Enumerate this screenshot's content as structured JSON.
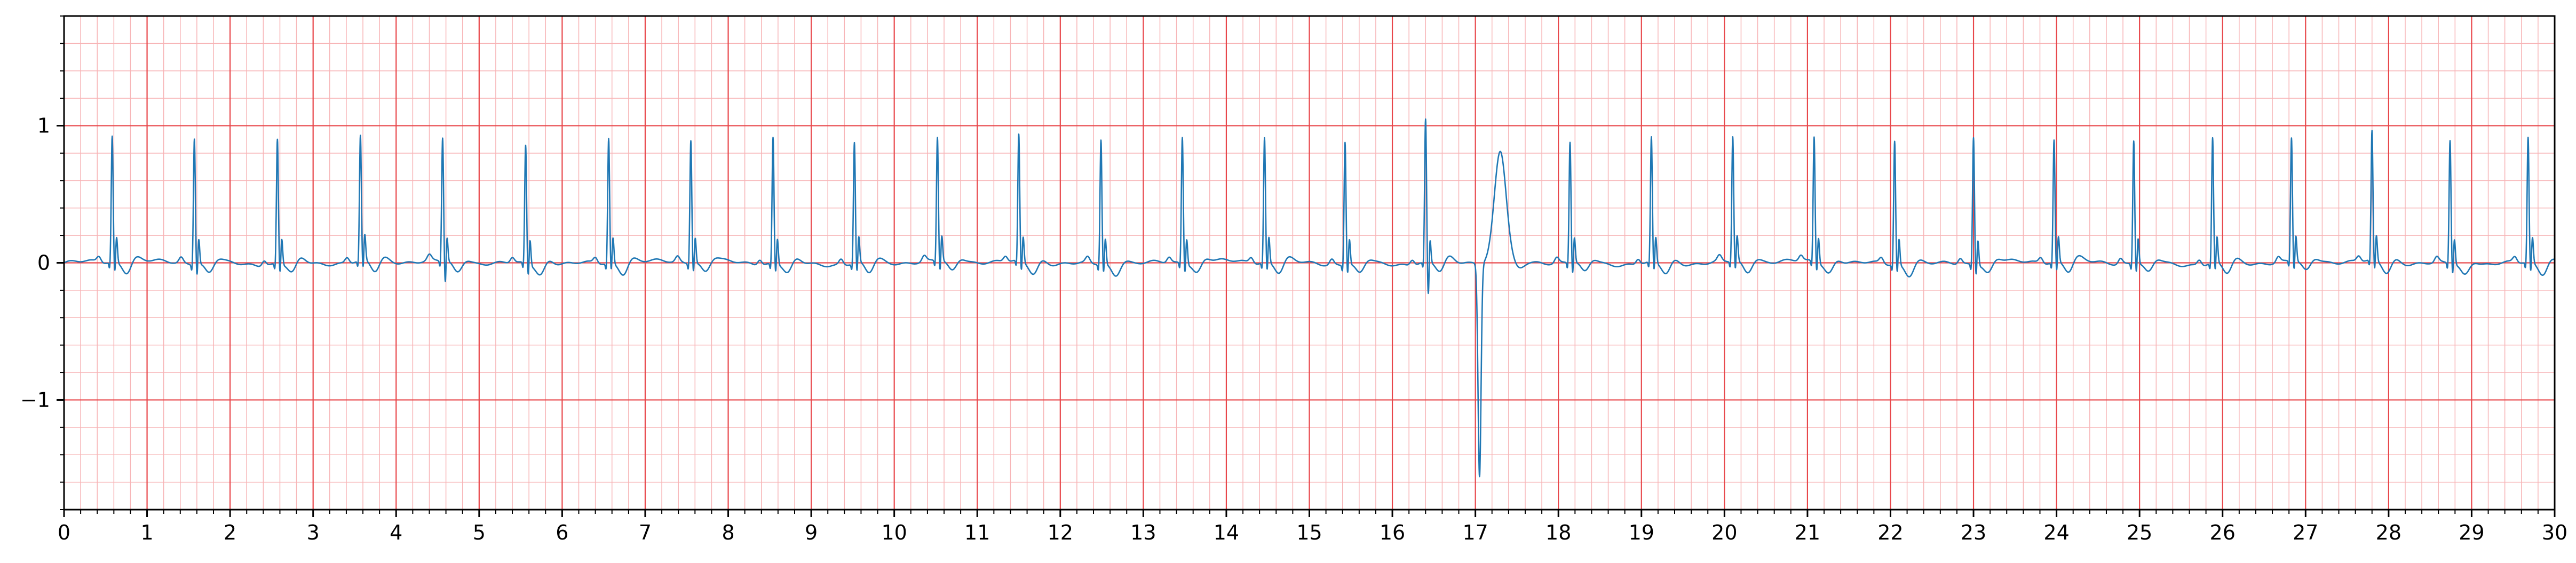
{
  "chart_data": {
    "type": "line",
    "title": "",
    "xlabel": "",
    "ylabel": "",
    "xlim": [
      0,
      30
    ],
    "ylim": [
      -1.8,
      1.8
    ],
    "x_ticks": [
      0,
      1,
      2,
      3,
      4,
      5,
      6,
      7,
      8,
      9,
      10,
      11,
      12,
      13,
      14,
      15,
      16,
      17,
      18,
      19,
      20,
      21,
      22,
      23,
      24,
      25,
      26,
      27,
      28,
      29,
      30
    ],
    "x_tick_labels": [
      "0",
      "1",
      "2",
      "3",
      "4",
      "5",
      "6",
      "7",
      "8",
      "9",
      "10",
      "11",
      "12",
      "13",
      "14",
      "15",
      "16",
      "17",
      "18",
      "19",
      "20",
      "21",
      "22",
      "23",
      "24",
      "25",
      "26",
      "27",
      "28",
      "29",
      "30"
    ],
    "y_ticks": [
      -1,
      0,
      1
    ],
    "y_tick_labels": [
      "−1",
      "0",
      "1"
    ],
    "grid": "on",
    "grid_major_step_x": 1,
    "grid_minor_step_x": 0.2,
    "grid_major_step_y": 1,
    "grid_minor_step_y": 0.2,
    "colors": {
      "trace": "#1f77b4",
      "grid_major": "#e8474b",
      "grid_minor": "#f7b4b6",
      "axis": "#000000"
    },
    "series": [
      {
        "name": "",
        "beats": [
          {
            "t": 0.58,
            "r": 0.92,
            "s": -0.15,
            "t_wave": 0.03
          },
          {
            "t": 1.57,
            "r": 0.92,
            "s": -0.16,
            "t_wave": 0.03
          },
          {
            "t": 2.57,
            "r": 0.91,
            "s": -0.14,
            "t_wave": 0.04
          },
          {
            "t": 3.57,
            "r": 0.91,
            "s": -0.14,
            "t_wave": 0.03
          },
          {
            "t": 4.56,
            "r": 0.9,
            "s": -0.24,
            "t_wave": 0.03
          },
          {
            "t": 5.56,
            "r": 0.86,
            "s": -0.16,
            "t_wave": 0.04
          },
          {
            "t": 6.56,
            "r": 0.91,
            "s": -0.13,
            "t_wave": 0.03
          },
          {
            "t": 7.55,
            "r": 0.9,
            "s": -0.14,
            "t_wave": 0.03
          },
          {
            "t": 8.54,
            "r": 0.92,
            "s": -0.14,
            "t_wave": 0.03
          },
          {
            "t": 9.52,
            "r": 0.88,
            "s": -0.15,
            "t_wave": 0.03
          },
          {
            "t": 10.52,
            "r": 0.9,
            "s": -0.15,
            "t_wave": 0.03
          },
          {
            "t": 11.5,
            "r": 0.92,
            "s": -0.15,
            "t_wave": 0.03
          },
          {
            "t": 12.49,
            "r": 0.91,
            "s": -0.14,
            "t_wave": 0.03
          },
          {
            "t": 13.47,
            "r": 0.92,
            "s": -0.14,
            "t_wave": 0.03
          },
          {
            "t": 14.46,
            "r": 0.91,
            "s": -0.14,
            "t_wave": 0.03
          },
          {
            "t": 15.43,
            "r": 0.9,
            "s": -0.14,
            "t_wave": 0.03
          },
          {
            "t": 16.4,
            "r": 1.04,
            "s": -0.33,
            "t_wave": 0.04
          },
          {
            "t": 18.14,
            "r": 0.88,
            "s": -0.16,
            "t_wave": 0.03
          },
          {
            "t": 19.12,
            "r": 0.91,
            "s": -0.14,
            "t_wave": 0.03
          },
          {
            "t": 20.1,
            "r": 0.91,
            "s": -0.14,
            "t_wave": 0.03
          },
          {
            "t": 21.08,
            "r": 0.91,
            "s": -0.14,
            "t_wave": 0.03
          },
          {
            "t": 22.05,
            "r": 0.9,
            "s": -0.14,
            "t_wave": 0.03
          },
          {
            "t": 23.0,
            "r": 0.93,
            "s": -0.15,
            "t_wave": 0.03
          },
          {
            "t": 23.97,
            "r": 0.89,
            "s": -0.15,
            "t_wave": 0.03
          },
          {
            "t": 24.93,
            "r": 0.9,
            "s": -0.14,
            "t_wave": 0.03
          },
          {
            "t": 25.88,
            "r": 0.91,
            "s": -0.14,
            "t_wave": 0.03
          },
          {
            "t": 26.83,
            "r": 0.9,
            "s": -0.14,
            "t_wave": 0.03
          },
          {
            "t": 27.8,
            "r": 0.94,
            "s": -0.15,
            "t_wave": 0.03
          },
          {
            "t": 28.74,
            "r": 0.9,
            "s": -0.15,
            "t_wave": 0.03
          },
          {
            "t": 29.68,
            "r": 0.91,
            "s": -0.15,
            "t_wave": 0.03
          }
        ],
        "ectopic_beat": {
          "t": 17.05,
          "nadir": -1.55,
          "peak": 0.8,
          "peak_t": 17.3
        }
      }
    ]
  }
}
